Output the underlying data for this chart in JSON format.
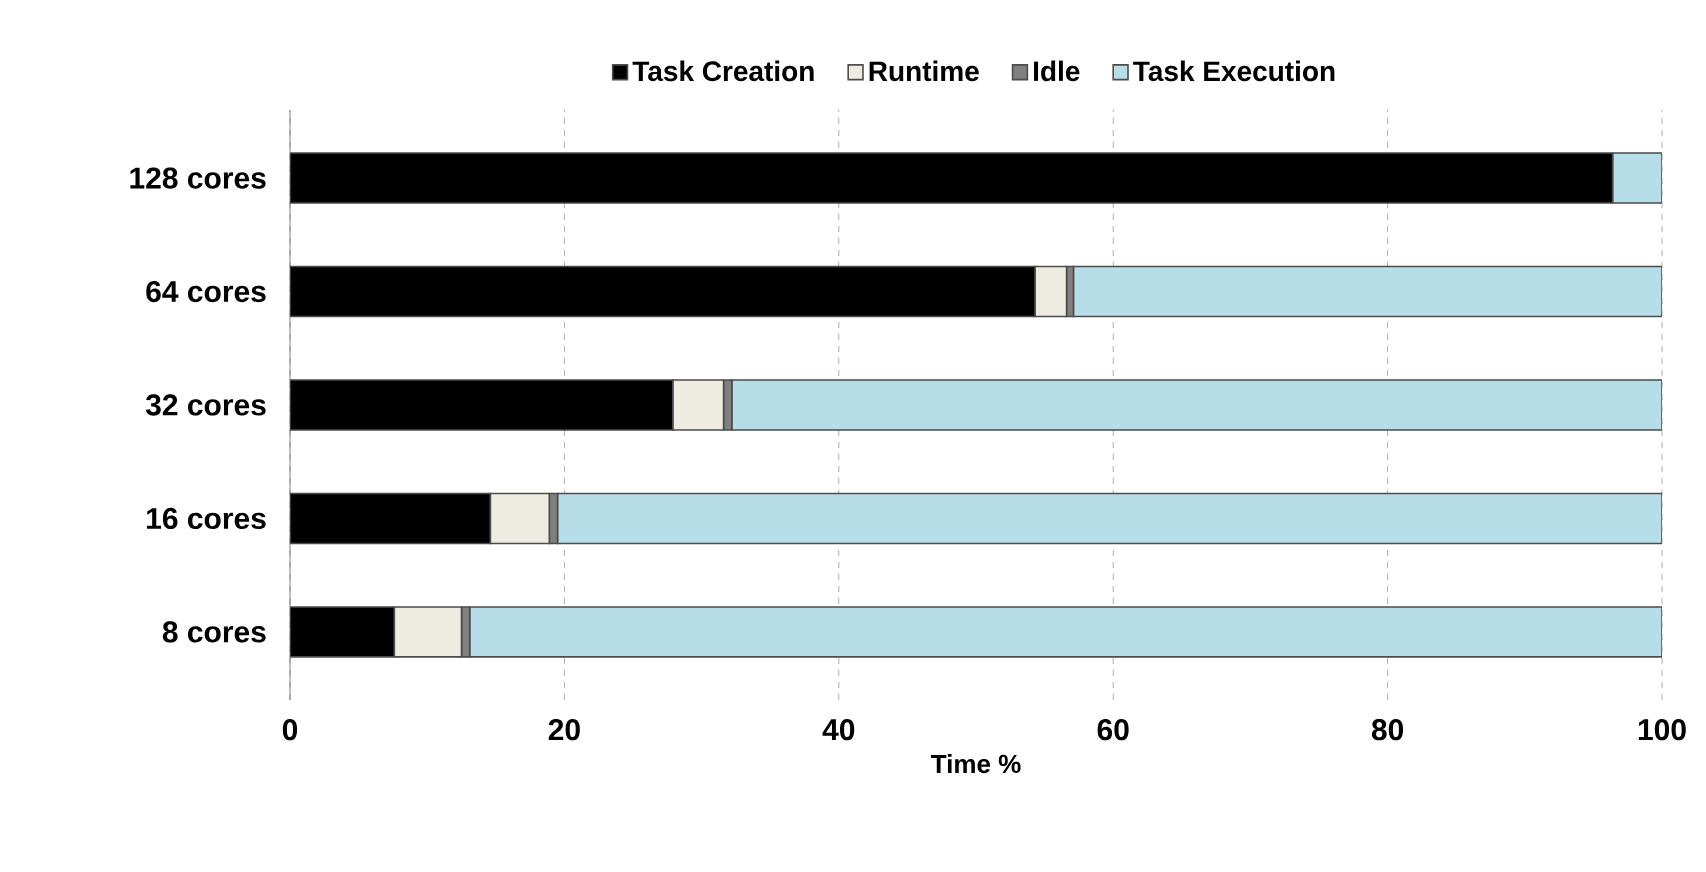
{
  "chart_data": {
    "type": "bar",
    "orientation": "horizontal",
    "stacked": true,
    "xlabel": "Time %",
    "categories": [
      "128 cores",
      "64 cores",
      "32 cores",
      "16 cores",
      "8 cores"
    ],
    "series": [
      {
        "name": "Task Creation",
        "color": "#000000",
        "values": [
          96.4,
          54.3,
          27.9,
          14.6,
          7.6
        ]
      },
      {
        "name": "Runtime",
        "color": "#eeebe0",
        "values": [
          0,
          2.3,
          3.7,
          4.3,
          4.9
        ]
      },
      {
        "name": "Idle",
        "color": "#808080",
        "values": [
          0,
          0.5,
          0.6,
          0.6,
          0.6
        ]
      },
      {
        "name": "Task Execution",
        "color": "#b7dde8",
        "values": [
          3.6,
          42.9,
          67.8,
          80.5,
          86.9
        ]
      }
    ],
    "xlim": [
      0,
      100
    ],
    "xticks": [
      0,
      20,
      40,
      60,
      80,
      100
    ],
    "grid": "x",
    "legend": "top"
  }
}
